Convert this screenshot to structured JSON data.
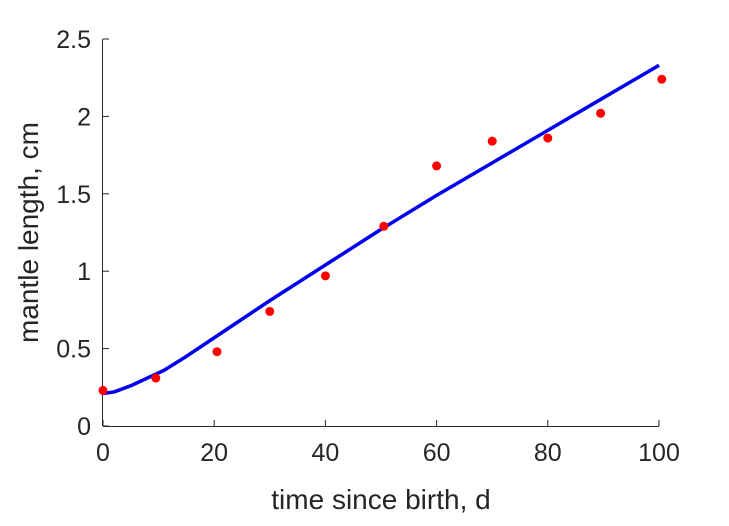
{
  "chart_data": {
    "type": "line",
    "title": "",
    "xlabel": "time since birth, d",
    "ylabel": "mantle length, cm",
    "xlim": [
      0,
      100
    ],
    "ylim": [
      0,
      2.5
    ],
    "x_ticks": [
      "0",
      "20",
      "40",
      "60",
      "80",
      "100"
    ],
    "y_ticks": [
      "0",
      "0.5",
      "1",
      "1.5",
      "2",
      "2.5"
    ],
    "grid": false,
    "legend": "none",
    "series": [
      {
        "kind": "scatter",
        "color": "#ff0000",
        "x": [
          0,
          9.5,
          20.5,
          30,
          40,
          50.5,
          60,
          70,
          80,
          89.5,
          100.5
        ],
        "y": [
          0.23,
          0.31,
          0.48,
          0.74,
          0.97,
          1.29,
          1.68,
          1.84,
          1.86,
          2.02,
          2.24
        ]
      },
      {
        "kind": "line",
        "color": "#0000ee",
        "x": [
          0,
          2,
          5,
          8,
          11,
          15,
          20,
          30,
          40,
          50,
          60,
          70,
          80,
          90,
          100
        ],
        "y": [
          0.21,
          0.22,
          0.26,
          0.31,
          0.36,
          0.45,
          0.57,
          0.81,
          1.04,
          1.27,
          1.49,
          1.7,
          1.91,
          2.12,
          2.33
        ]
      }
    ]
  }
}
